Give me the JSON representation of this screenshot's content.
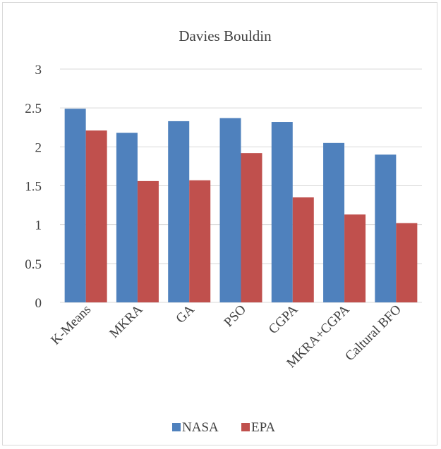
{
  "chart_data": {
    "type": "bar",
    "title": "Davies Bouldin",
    "xlabel": "",
    "ylabel": "",
    "categories": [
      "K-Means",
      "MKRA",
      "GA",
      "PSO",
      "CGPA",
      "MKRA+CGPA",
      "Caltural BFO"
    ],
    "series": [
      {
        "name": "NASA",
        "color": "#4f81bd",
        "values": [
          2.49,
          2.18,
          2.33,
          2.37,
          2.32,
          2.05,
          1.9
        ]
      },
      {
        "name": "EPA",
        "color": "#c0504d",
        "values": [
          2.21,
          1.56,
          1.57,
          1.92,
          1.35,
          1.13,
          1.02
        ]
      }
    ],
    "ylim": [
      0,
      3
    ],
    "yticks": [
      "0",
      "0.5",
      "1",
      "1.5",
      "2",
      "2.5",
      "3"
    ],
    "grid": true,
    "legend_position": "bottom"
  }
}
